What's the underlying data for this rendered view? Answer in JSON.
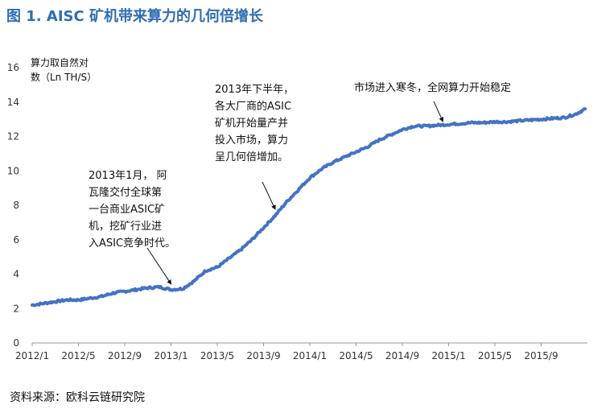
{
  "figure_title": "图 1. AISC 矿机带来算力的几何倍增长",
  "source": "资料来源：欧科云链研究院",
  "colors": {
    "title": "#2e6db4",
    "line": "#4472c4",
    "axis": "#999999"
  },
  "chart_data": {
    "type": "line",
    "ylabel": [
      "算力取自然对",
      "数（Ln TH/S）"
    ],
    "ylim": [
      0,
      16
    ],
    "yticks": [
      0,
      2,
      4,
      6,
      8,
      10,
      12,
      14,
      16
    ],
    "xlim": [
      0,
      48
    ],
    "xticks": [
      {
        "m": 0,
        "label": "2012/1"
      },
      {
        "m": 4,
        "label": "2012/5"
      },
      {
        "m": 8,
        "label": "2012/9"
      },
      {
        "m": 12,
        "label": "2013/1"
      },
      {
        "m": 16,
        "label": "2013/5"
      },
      {
        "m": 20,
        "label": "2013/9"
      },
      {
        "m": 24,
        "label": "2014/1"
      },
      {
        "m": 28,
        "label": "2014/5"
      },
      {
        "m": 32,
        "label": "2014/9"
      },
      {
        "m": 36,
        "label": "2015/1"
      },
      {
        "m": 40,
        "label": "2015/5"
      },
      {
        "m": 44,
        "label": "2015/9"
      }
    ],
    "series": [
      {
        "x": [
          0,
          1,
          2,
          3,
          4,
          5,
          6,
          7,
          8,
          9,
          10,
          11,
          12,
          13,
          14,
          15,
          16,
          17,
          18,
          19,
          20,
          21,
          22,
          23,
          24,
          25,
          26,
          27,
          28,
          29,
          30,
          31,
          32,
          33,
          34,
          35,
          36,
          37,
          38,
          39,
          40,
          41,
          42,
          43,
          44,
          45,
          46,
          47,
          47.8
        ],
        "y": [
          2.2,
          2.3,
          2.4,
          2.5,
          2.5,
          2.6,
          2.7,
          2.9,
          3.0,
          3.1,
          3.2,
          3.25,
          3.1,
          3.15,
          3.6,
          4.2,
          4.4,
          4.9,
          5.4,
          6.0,
          6.7,
          7.4,
          8.2,
          8.9,
          9.6,
          10.1,
          10.5,
          10.8,
          11.1,
          11.4,
          11.8,
          12.1,
          12.4,
          12.6,
          12.6,
          12.65,
          12.7,
          12.75,
          12.8,
          12.8,
          12.85,
          12.85,
          12.9,
          12.95,
          13.0,
          13.05,
          13.1,
          13.3,
          13.6
        ]
      }
    ],
    "annotations": [
      {
        "lines": [
          "2013年1月，  阿",
          "瓦隆交付全球第",
          "一台商业ASIC矿",
          "机，挖矿行业进",
          "入ASIC竞争时代。"
        ],
        "point": [
          12,
          3.15
        ]
      },
      {
        "lines": [
          "2013年下半年，",
          "各大厂商的ASIC",
          "矿机开始量产并",
          "投入市场，算力",
          "呈几何倍增加。"
        ],
        "point": [
          21,
          7.5
        ]
      },
      {
        "lines": [
          "市场进入寒冬，全网算力开始稳定"
        ],
        "point": [
          35.5,
          12.6
        ]
      }
    ]
  }
}
